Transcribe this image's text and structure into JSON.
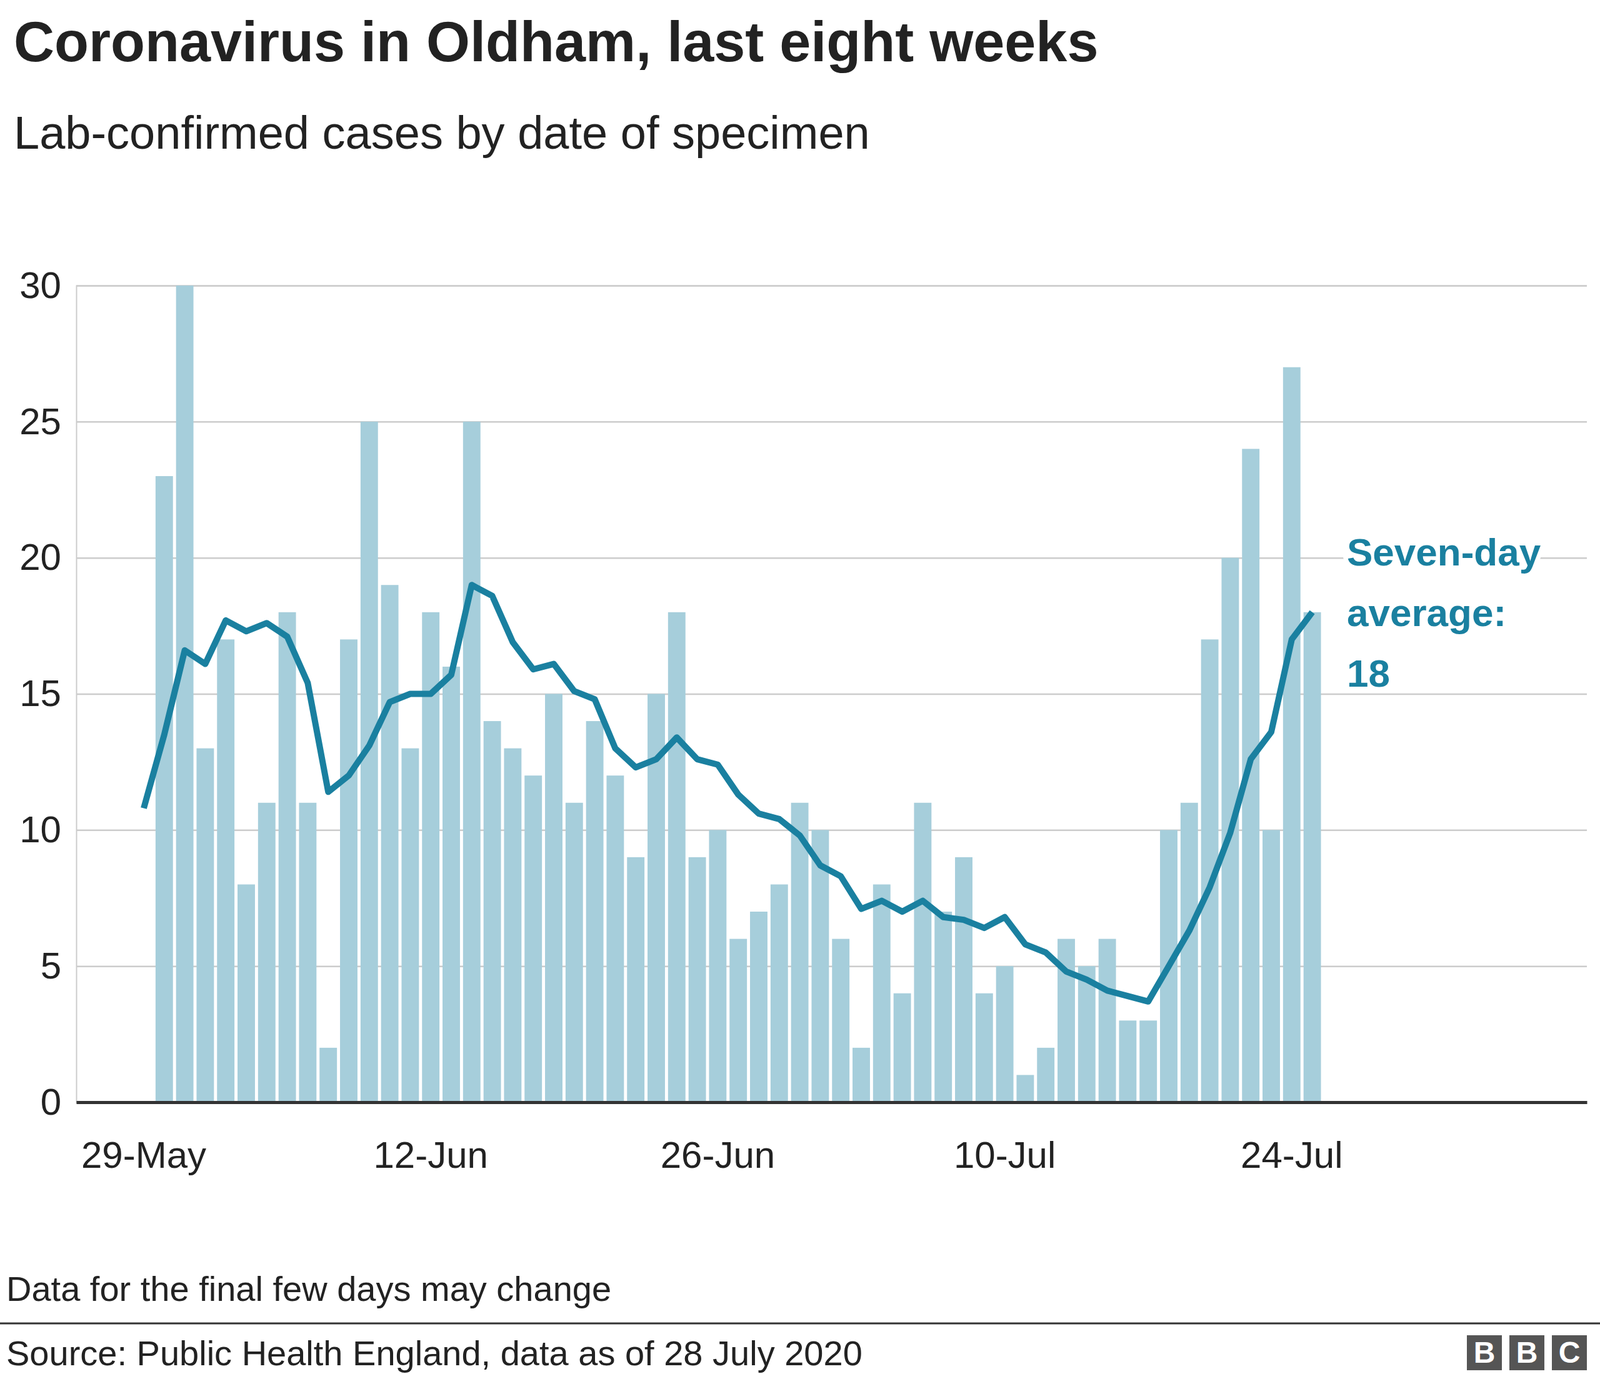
{
  "chart_data": {
    "type": "bar",
    "title": "Coronavirus in Oldham, last eight weeks",
    "subtitle": "Lab-confirmed cases by date of specimen",
    "categories": [
      "29-May",
      null,
      null,
      null,
      null,
      null,
      null,
      null,
      null,
      null,
      null,
      null,
      null,
      null,
      "12-Jun",
      null,
      null,
      null,
      null,
      null,
      null,
      null,
      null,
      null,
      null,
      null,
      null,
      null,
      "26-Jun",
      null,
      null,
      null,
      null,
      null,
      null,
      null,
      null,
      null,
      null,
      null,
      null,
      null,
      "10-Jul",
      null,
      null,
      null,
      null,
      null,
      null,
      null,
      null,
      null,
      null,
      null,
      null,
      null,
      "24-Jul",
      null
    ],
    "series": [
      {
        "type": "bar",
        "color": "#a6cedb",
        "values": [
          null,
          23,
          30,
          13,
          17,
          8,
          11,
          18,
          11,
          2,
          17,
          25,
          19,
          13,
          18,
          16,
          25,
          14,
          13,
          12,
          15,
          11,
          14,
          12,
          9,
          15,
          18,
          9,
          10,
          6,
          7,
          8,
          11,
          10,
          6,
          2,
          8,
          4,
          11,
          7,
          9,
          4,
          5,
          1,
          2,
          6,
          5,
          6,
          3,
          3,
          10,
          11,
          17,
          20,
          24,
          10,
          27,
          18
        ]
      },
      {
        "type": "line",
        "color": "#1a80a0",
        "values": [
          10.8,
          13.5,
          16.6,
          16.1,
          17.7,
          17.3,
          17.6,
          17.1,
          15.4,
          11.4,
          12.0,
          13.1,
          14.7,
          15.0,
          15.0,
          15.7,
          19.0,
          18.6,
          16.9,
          15.9,
          16.1,
          15.1,
          14.8,
          13.0,
          12.3,
          12.6,
          13.4,
          12.6,
          12.4,
          11.3,
          10.6,
          10.4,
          9.8,
          8.7,
          8.3,
          7.1,
          7.4,
          7.0,
          7.4,
          6.8,
          6.7,
          6.4,
          6.8,
          5.8,
          5.5,
          4.8,
          4.5,
          4.1,
          3.9,
          3.7,
          5.0,
          6.3,
          7.9,
          9.9,
          12.6,
          13.6,
          17.0,
          18.0
        ]
      }
    ],
    "ylim": [
      0,
      30
    ],
    "yticks": [
      0,
      5,
      10,
      15,
      20,
      25,
      30
    ],
    "grid": true,
    "annotation": "Seven-day average: 18",
    "footnote": "Data for the final few days may change",
    "source": "Source: Public Health England, data as of 28 July 2020",
    "logo": "BBC"
  }
}
